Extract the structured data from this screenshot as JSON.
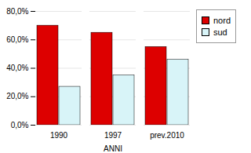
{
  "chart_data": {
    "type": "bar",
    "xlabel": "ANNI",
    "categories": [
      "1990",
      "1997",
      "prev.2010"
    ],
    "series": [
      {
        "name": "nord",
        "color": "#DD0000",
        "values": [
          0.7,
          0.65,
          0.55
        ]
      },
      {
        "name": "sud",
        "color": "#D8F4F8",
        "values": [
          0.27,
          0.35,
          0.46
        ]
      }
    ],
    "ylim": [
      0.0,
      0.8
    ],
    "yticks": [
      {
        "value": 0.0,
        "label": "0,0%"
      },
      {
        "value": 0.2,
        "label": "20,0%"
      },
      {
        "value": 0.4,
        "label": "40,0%"
      },
      {
        "value": 0.6,
        "label": "60,0%"
      },
      {
        "value": 0.8,
        "label": "80,0%"
      }
    ],
    "grid": true,
    "legend": "right"
  }
}
